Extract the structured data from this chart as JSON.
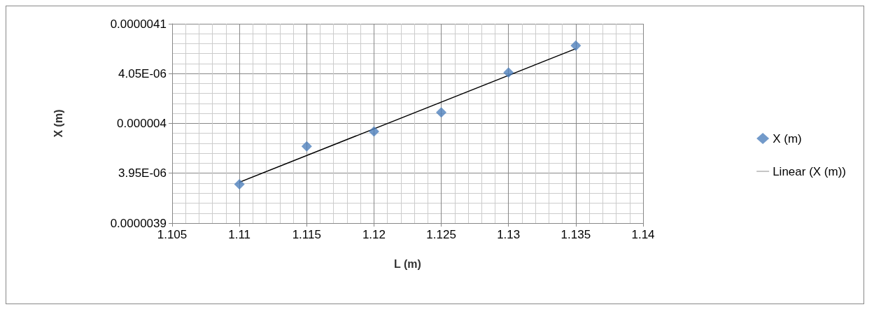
{
  "chart_data": {
    "type": "scatter",
    "xlabel": "L (m)",
    "ylabel": "X (m)",
    "xlim": [
      1.105,
      1.14
    ],
    "xticks": [
      1.105,
      1.11,
      1.115,
      1.12,
      1.125,
      1.13,
      1.135,
      1.14
    ],
    "ylim": [
      3.9e-06,
      4.1e-06
    ],
    "yticks": [
      {
        "value": 3.9e-06,
        "label": "0.0000039"
      },
      {
        "value": 3.95e-06,
        "label": "3.95E-06"
      },
      {
        "value": 4e-06,
        "label": "0.000004"
      },
      {
        "value": 4.05e-06,
        "label": "4.05E-06"
      },
      {
        "value": 4.1e-06,
        "label": "0.0000041"
      }
    ],
    "x": [
      1.11,
      1.115,
      1.12,
      1.125,
      1.13,
      1.135
    ],
    "series": [
      {
        "name": "X (m)",
        "color": "#4f81bd",
        "marker": "diamond",
        "values": [
          3.939e-06,
          3.977e-06,
          3.992e-06,
          4.011e-06,
          4.051e-06,
          4.078e-06
        ]
      },
      {
        "name": "Linear (X (m))",
        "type": "line",
        "color": "#000000",
        "marker": "none",
        "line_style": "solid",
        "x": [
          1.11,
          1.135
        ],
        "values": [
          3.941e-06,
          4.075e-06
        ]
      }
    ],
    "grid": true,
    "legend": "right"
  }
}
